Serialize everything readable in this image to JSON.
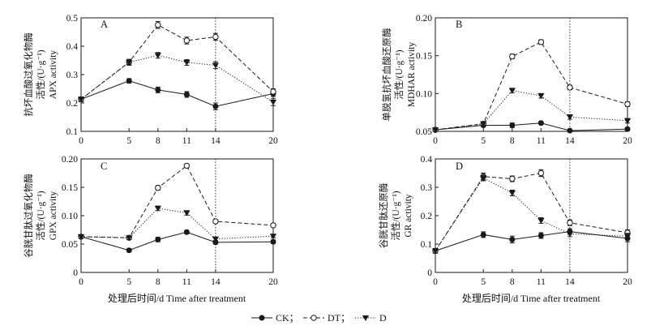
{
  "chart_data": [
    {
      "type": "line",
      "panel": "A",
      "ylabel_lines": [
        "抗坏血酸过氧化物酶",
        "活性/(U·g⁻¹)",
        "APX activity"
      ],
      "x": [
        0,
        5,
        8,
        11,
        14,
        20
      ],
      "xticks": [
        0,
        5,
        8,
        11,
        14,
        20
      ],
      "ylim": [
        0.1,
        0.5
      ],
      "yticks": [
        "0.1",
        "0.2",
        "0.3",
        "0.4",
        "0.5"
      ],
      "vline_x": 14,
      "series": [
        {
          "name": "CK",
          "values": [
            0.213,
            0.278,
            0.246,
            0.23,
            0.188,
            0.233
          ],
          "errors": [
            0.008,
            0.008,
            0.01,
            0.01,
            0.012,
            0.01
          ]
        },
        {
          "name": "DT",
          "values": [
            0.213,
            0.344,
            0.475,
            0.42,
            0.433,
            0.24
          ],
          "errors": [
            0.008,
            0.01,
            0.012,
            0.012,
            0.012,
            0.01
          ]
        },
        {
          "name": "D",
          "values": [
            0.213,
            0.343,
            0.368,
            0.343,
            0.333,
            0.203
          ],
          "errors": [
            0.008,
            0.01,
            0.01,
            0.01,
            0.012,
            0.012
          ]
        }
      ]
    },
    {
      "type": "line",
      "panel": "B",
      "ylabel_lines": [
        "单脱氢抗坏血酸还原酶",
        "活性/(U·g⁻¹)",
        "MDHAR activity"
      ],
      "x": [
        0,
        5,
        8,
        11,
        14,
        20
      ],
      "xticks": [
        0,
        5,
        8,
        11,
        14,
        20
      ],
      "ylim": [
        0.05,
        0.2
      ],
      "yticks": [
        "0.05",
        "0.10",
        "0.15",
        "0.20"
      ],
      "vline_x": 14,
      "series": [
        {
          "name": "CK",
          "values": [
            0.052,
            0.058,
            0.058,
            0.061,
            0.051,
            0.053
          ],
          "errors": [
            0.002,
            0.002,
            0.003,
            0.002,
            0.002,
            0.002
          ]
        },
        {
          "name": "DT",
          "values": [
            0.052,
            0.06,
            0.149,
            0.168,
            0.108,
            0.086
          ],
          "errors": [
            0.002,
            0.002,
            0.003,
            0.003,
            0.003,
            0.003
          ]
        },
        {
          "name": "D",
          "values": [
            0.052,
            0.06,
            0.104,
            0.097,
            0.069,
            0.064
          ],
          "errors": [
            0.002,
            0.002,
            0.003,
            0.003,
            0.003,
            0.003
          ]
        }
      ]
    },
    {
      "type": "line",
      "panel": "C",
      "ylabel_lines": [
        "谷胱甘肽过氧化物酶",
        "活性/(U·g⁻¹)",
        "GPX activity"
      ],
      "x": [
        0,
        5,
        8,
        11,
        14,
        20
      ],
      "xticks": [
        0,
        5,
        8,
        11,
        14,
        20
      ],
      "ylim": [
        0,
        0.2
      ],
      "yticks": [
        "0",
        "0.05",
        "0.10",
        "0.15",
        "0.20"
      ],
      "vline_x": 14,
      "series": [
        {
          "name": "CK",
          "values": [
            0.063,
            0.039,
            0.058,
            0.071,
            0.053,
            0.054
          ],
          "errors": [
            0.003,
            0.003,
            0.004,
            0.003,
            0.003,
            0.003
          ]
        },
        {
          "name": "DT",
          "values": [
            0.063,
            0.061,
            0.149,
            0.188,
            0.09,
            0.083
          ],
          "errors": [
            0.003,
            0.003,
            0.004,
            0.003,
            0.003,
            0.003
          ]
        },
        {
          "name": "D",
          "values": [
            0.063,
            0.061,
            0.113,
            0.105,
            0.059,
            0.064
          ],
          "errors": [
            0.003,
            0.003,
            0.004,
            0.004,
            0.003,
            0.003
          ]
        }
      ]
    },
    {
      "type": "line",
      "panel": "D",
      "ylabel_lines": [
        "谷胱甘肽还原酶",
        "活性/(U·g⁻¹)",
        "GR activity"
      ],
      "x": [
        0,
        5,
        8,
        11,
        14,
        20
      ],
      "xticks": [
        0,
        5,
        8,
        11,
        14,
        20
      ],
      "ylim": [
        0,
        0.4
      ],
      "yticks": [
        "0",
        "0.1",
        "0.2",
        "0.3",
        "0.4"
      ],
      "vline_x": 14,
      "series": [
        {
          "name": "CK",
          "values": [
            0.076,
            0.133,
            0.116,
            0.13,
            0.144,
            0.12
          ],
          "errors": [
            0.008,
            0.01,
            0.012,
            0.01,
            0.01,
            0.012
          ]
        },
        {
          "name": "DT",
          "values": [
            0.076,
            0.338,
            0.33,
            0.35,
            0.175,
            0.14
          ],
          "errors": [
            0.008,
            0.012,
            0.01,
            0.012,
            0.01,
            0.01
          ]
        },
        {
          "name": "D",
          "values": [
            0.076,
            0.333,
            0.28,
            0.183,
            0.136,
            0.128
          ],
          "errors": [
            0.008,
            0.01,
            0.01,
            0.01,
            0.01,
            0.01
          ]
        }
      ]
    }
  ],
  "xlabel": "处理后时间/d   Time after treatment",
  "legend": [
    {
      "name": "CK",
      "label": "CK；",
      "marker": "filled-circle",
      "line": "solid"
    },
    {
      "name": "DT",
      "label": "DT；",
      "marker": "open-circle",
      "line": "dashed"
    },
    {
      "name": "D",
      "label": "D",
      "marker": "filled-triangle",
      "line": "dotted"
    }
  ],
  "colors": {
    "ink": "#1a1a1a",
    "background": "#ffffff"
  }
}
